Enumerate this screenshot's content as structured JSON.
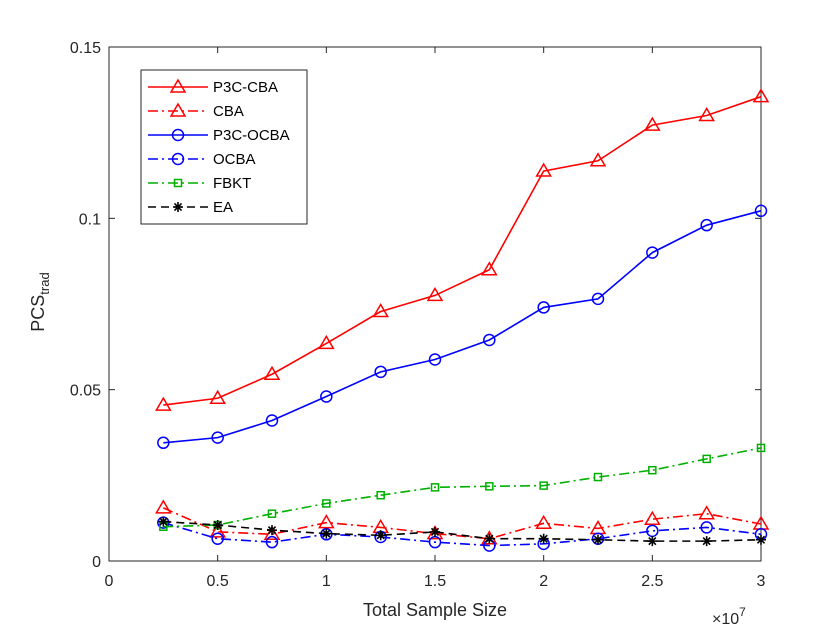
{
  "chart_data": {
    "type": "line",
    "title": "",
    "xlabel": "Total Sample Size",
    "ylabel_main": "PCS",
    "ylabel_sub": "trad",
    "x_exponent_base": "×10",
    "x_exponent_power": "7",
    "xlim": [
      0,
      3
    ],
    "ylim": [
      0,
      0.15
    ],
    "x_ticks": [
      0,
      0.5,
      1,
      1.5,
      2,
      2.5,
      3
    ],
    "x_tick_labels": [
      "0",
      "0.5",
      "1",
      "1.5",
      "2",
      "2.5",
      "3"
    ],
    "y_ticks": [
      0,
      0.05,
      0.1,
      0.15
    ],
    "y_tick_labels": [
      "0",
      "0.05",
      "0.1",
      "0.15"
    ],
    "grid": false,
    "legend_position": "top-left",
    "x": [
      0.25,
      0.5,
      0.75,
      1.0,
      1.25,
      1.5,
      1.75,
      2.0,
      2.25,
      2.5,
      2.75,
      3.0
    ],
    "series": [
      {
        "name": "P3C-CBA",
        "color": "#ff0000",
        "dash": "solid",
        "marker": "triangle",
        "values": [
          0.0455,
          0.0475,
          0.0545,
          0.0635,
          0.0728,
          0.0775,
          0.085,
          0.1138,
          0.1168,
          0.1272,
          0.13,
          0.1355
        ]
      },
      {
        "name": "CBA",
        "color": "#ff0000",
        "dash": "dashdot",
        "marker": "triangle",
        "values": [
          0.0155,
          0.0085,
          0.0078,
          0.0112,
          0.0098,
          0.008,
          0.0065,
          0.011,
          0.0095,
          0.0122,
          0.0138,
          0.0108
        ]
      },
      {
        "name": "P3C-OCBA",
        "color": "#0000ff",
        "dash": "solid",
        "marker": "circle",
        "values": [
          0.0345,
          0.036,
          0.041,
          0.048,
          0.0552,
          0.0588,
          0.0645,
          0.074,
          0.0765,
          0.09,
          0.098,
          0.1022
        ]
      },
      {
        "name": "OCBA",
        "color": "#0000ff",
        "dash": "dashdot",
        "marker": "circle",
        "values": [
          0.0112,
          0.0065,
          0.0055,
          0.0078,
          0.007,
          0.0055,
          0.0045,
          0.005,
          0.0065,
          0.0088,
          0.0098,
          0.0078
        ]
      },
      {
        "name": "FBKT",
        "color": "#00b000",
        "dash": "dashdot",
        "marker": "square",
        "values": [
          0.01,
          0.0105,
          0.0138,
          0.0168,
          0.0192,
          0.0215,
          0.0218,
          0.022,
          0.0245,
          0.0265,
          0.0298,
          0.033
        ]
      },
      {
        "name": "EA",
        "color": "#000000",
        "dash": "dashed",
        "marker": "star",
        "values": [
          0.0115,
          0.0105,
          0.009,
          0.008,
          0.0075,
          0.0085,
          0.0065,
          0.0065,
          0.0062,
          0.0058,
          0.0058,
          0.0062
        ]
      }
    ]
  }
}
